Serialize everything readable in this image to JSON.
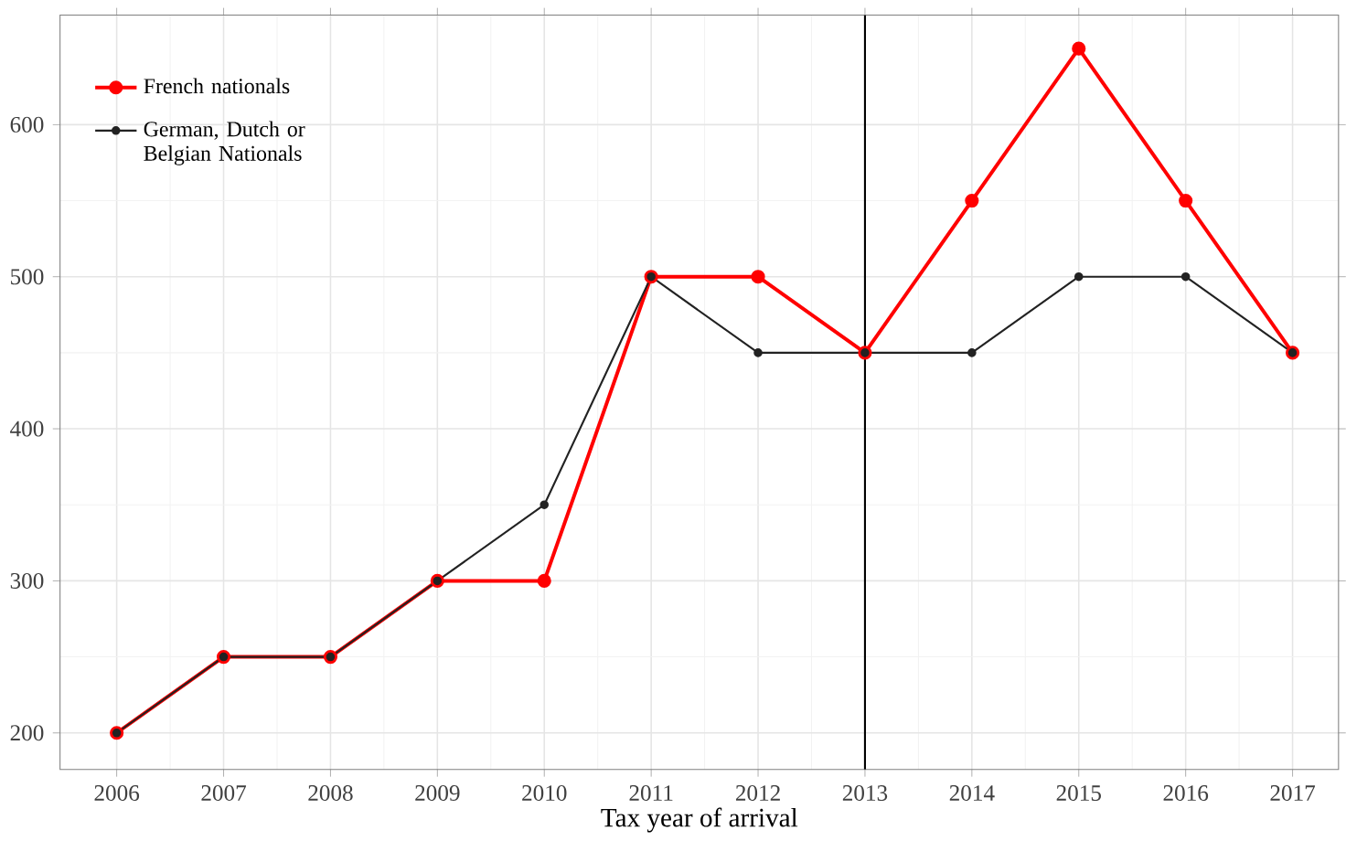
{
  "chart_data": {
    "type": "line",
    "xlabel": "Tax year of arrival",
    "x": [
      2006,
      2007,
      2008,
      2009,
      2010,
      2011,
      2012,
      2013,
      2014,
      2015,
      2016,
      2017
    ],
    "series": [
      {
        "name": "French nationals",
        "color": "#ff0000",
        "values": [
          200,
          250,
          250,
          300,
          300,
          500,
          500,
          450,
          550,
          650,
          550,
          450
        ]
      },
      {
        "name": "German, Dutch or Belgian Nationals",
        "color": "#222222",
        "values": [
          200,
          250,
          250,
          300,
          350,
          500,
          450,
          450,
          450,
          500,
          500,
          450
        ]
      }
    ],
    "xlim": [
      2005.47,
      2017.43
    ],
    "ylim": [
      176,
      672
    ],
    "xticks": [
      2006,
      2007,
      2008,
      2009,
      2010,
      2011,
      2012,
      2013,
      2014,
      2015,
      2016,
      2017
    ],
    "yticks": [
      200,
      300,
      400,
      500,
      600
    ],
    "ref_lines": [
      {
        "axis": "x",
        "value": 2013,
        "color": "#000000"
      }
    ],
    "grid": true,
    "legend": "top left",
    "marker": "circle",
    "line_style": "solid"
  }
}
